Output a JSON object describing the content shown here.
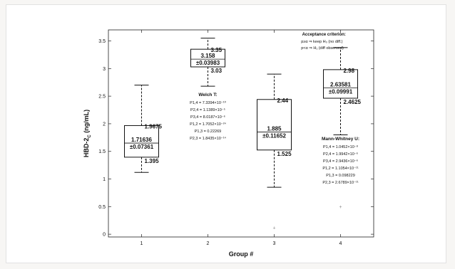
{
  "chart_data": {
    "type": "box",
    "xlabel": "Group #",
    "ylabel_main": "HBD-2",
    "ylabel_sub": "C",
    "ylabel_unit": " (ng/mL)",
    "ylim": [
      -0.05,
      3.7
    ],
    "xlim": [
      0.5,
      4.5
    ],
    "categories": [
      "1",
      "2",
      "3",
      "4"
    ],
    "yticks": [
      0,
      0.5,
      1,
      1.5,
      2,
      2.5,
      3,
      3.5
    ],
    "ytick_labels": [
      "0",
      "0.5",
      "1",
      "1.5",
      "2",
      "2.5",
      "3",
      "3.5"
    ],
    "groups": [
      {
        "x": 1,
        "whisker_low": 1.12,
        "q1": 1.395,
        "median": 1.65,
        "q3": 1.9675,
        "whisker_high": 2.7,
        "outliers": [],
        "mean_label": "1.71636",
        "sd_label": "±0.07361",
        "q1_label": "1.395",
        "q3_label": "1.9675"
      },
      {
        "x": 2,
        "whisker_low": 2.68,
        "q1": 3.03,
        "median": 3.17,
        "q3": 3.35,
        "whisker_high": 3.55,
        "outliers": [],
        "mean_label": "3.158",
        "sd_label": "±0.03983",
        "q1_label": "3.03",
        "q3_label": "3.35"
      },
      {
        "x": 3,
        "whisker_low": 0.85,
        "q1": 1.525,
        "median": 1.85,
        "q3": 2.44,
        "whisker_high": 2.9,
        "outliers": [
          0.12
        ],
        "mean_label": "1.885",
        "sd_label": "±0.11652",
        "q1_label": "1.525",
        "q3_label": "2.44"
      },
      {
        "x": 4,
        "whisker_low": 1.8,
        "q1": 2.4625,
        "median": 2.65,
        "q3": 2.98,
        "whisker_high": 3.38,
        "outliers": [
          0.5
        ],
        "mean_label": "2.63581",
        "sd_label": "±0.09991",
        "q1_label": "2.4625",
        "q3_label": "2.98"
      }
    ],
    "welch": {
      "title": "Welch T:",
      "lines": [
        "P1,4 = 7.3394×10⁻¹⁰",
        "P2,4 = 1.1389×10⁻⁵",
        "P3,4 = 8.0187×10⁻⁶",
        "P1,2 = 1.7052×10⁻²⁴",
        "P1,3 = 0.22269",
        "P2,3 = 1.8435×10⁻¹⁴"
      ]
    },
    "mann": {
      "title": "Mann-Whitney U:",
      "lines": [
        "P1,4 = 1.0452×10⁻⁸",
        "P2,4 = 1.9942×10⁻⁶",
        "P3,4 = 2.9436×10⁻⁶",
        "P1,2 = 1.1054×10⁻¹¹",
        "P1,3 = 0.098229",
        "P2,3 = 2.6789×10⁻¹¹"
      ]
    },
    "criterion": {
      "title": "Acceptance criterion:",
      "lines": [
        "p≥α ⇒ keep H₀ (no diff.)",
        "p<α ⇒ H₁ (diff observed)"
      ]
    },
    "colors": {
      "box": "#111111",
      "whisker": "#111111",
      "outlier": "#888888",
      "axis": "#222222"
    }
  }
}
